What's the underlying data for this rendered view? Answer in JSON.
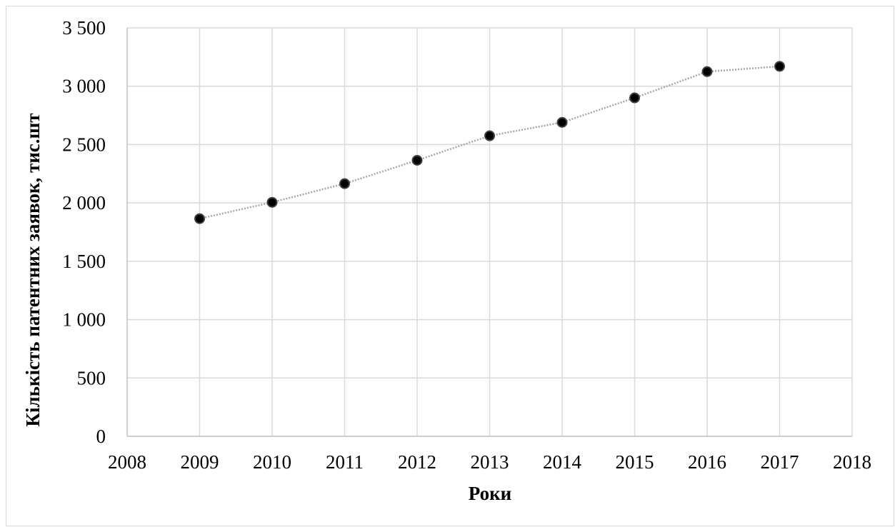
{
  "chart_data": {
    "type": "scatter",
    "xlabel": "Роки",
    "ylabel": "Кількість патентних заявок, тис.шт",
    "xlim": [
      2008,
      2018
    ],
    "ylim": [
      0,
      3500
    ],
    "x_ticks": [
      2008,
      2009,
      2010,
      2011,
      2012,
      2013,
      2014,
      2015,
      2016,
      2017,
      2018
    ],
    "y_ticks": [
      0,
      500,
      1000,
      1500,
      2000,
      2500,
      3000,
      3500
    ],
    "y_tick_labels": [
      "0",
      "500",
      "1 000",
      "1 500",
      "2 000",
      "2 500",
      "3 000",
      "3 500"
    ],
    "series": [
      {
        "x": [
          2009,
          2010,
          2011,
          2012,
          2013,
          2014,
          2015,
          2016,
          2017
        ],
        "y": [
          1865,
          2005,
          2165,
          2365,
          2575,
          2690,
          2900,
          3125,
          3170
        ]
      }
    ],
    "grid": "both",
    "legend": "none",
    "colors": {
      "marker_fill": "#000000",
      "marker_edge": "#404040",
      "line": "#a6a6a6",
      "grid": "#d9d9d9",
      "axis": "#bfbfbf"
    }
  }
}
